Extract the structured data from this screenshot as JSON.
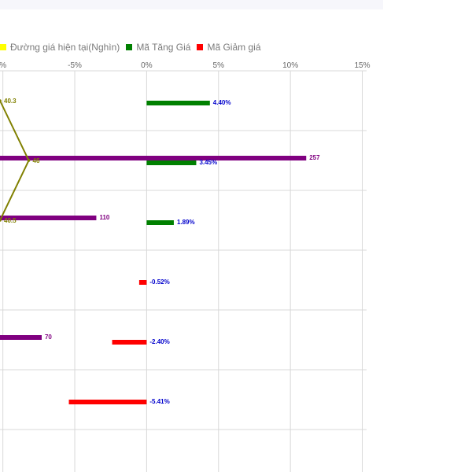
{
  "colors": {
    "price_line": "#808000",
    "volume_bar": "#800080",
    "increase": "#008000",
    "decrease": "#ff0000",
    "change_label": "#0000cc",
    "volume_label": "#800080",
    "price_label": "#808000",
    "grid": "#d8d8d8",
    "tick_label": "#666666",
    "legend_price_swatch": "#ffff00"
  },
  "legend": {
    "items": [
      {
        "label": "Đường giá hiện tại(Nghìn)",
        "color": "#ffff00"
      },
      {
        "label": "Mã Tăng Giá",
        "color": "#008000"
      },
      {
        "label": "Mã Giảm giá",
        "color": "#ff0000"
      }
    ]
  },
  "chart_data": {
    "type": "bar",
    "orientation": "horizontal",
    "categories": [
      "",
      "",
      "",
      "",
      "",
      "",
      ""
    ],
    "x_ticks": [
      "%",
      "-5%",
      "0%",
      "5%",
      "10%",
      "15%"
    ],
    "x_tick_values": [
      -10,
      -5,
      0,
      5,
      10,
      15
    ],
    "xlim": [
      -10.2,
      15.3
    ],
    "grid": true,
    "legend_position": "top-left",
    "series": [
      {
        "name": "Mã Tăng Giá",
        "type": "bar",
        "values": [
          4.4,
          3.45,
          1.89,
          null,
          null,
          null,
          null
        ],
        "labels": [
          "4.40%",
          "3.45%",
          "1.89%",
          "",
          "",
          "",
          ""
        ]
      },
      {
        "name": "Mã Giảm giá",
        "type": "bar",
        "values": [
          null,
          null,
          null,
          -0.52,
          -2.4,
          -5.41,
          null
        ],
        "labels": [
          "",
          "",
          "",
          "-0.52%",
          "-2.40%",
          "-5.41%",
          ""
        ]
      },
      {
        "name": "",
        "type": "bar",
        "bar_start": -10.2,
        "bar_end_percent_axis": [
          null,
          11.1,
          -3.5,
          null,
          -7.3,
          null,
          null
        ],
        "labels": [
          "",
          "257",
          "110",
          "",
          "70",
          "",
          ""
        ]
      },
      {
        "name": "Đường giá hiện tại(Nghìn)",
        "type": "line",
        "points_percent_axis": [
          -10.2,
          -8.2,
          -10.2
        ],
        "labels": [
          "40.3",
          "46",
          "40.5"
        ]
      }
    ]
  }
}
